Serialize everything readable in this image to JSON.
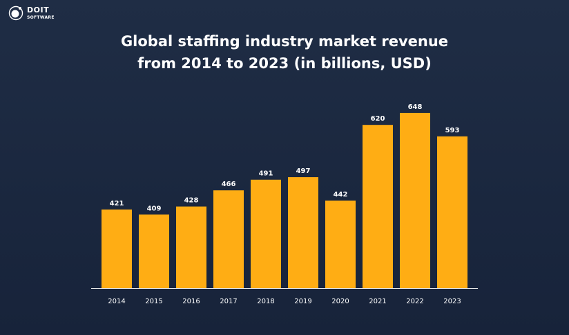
{
  "logo": {
    "text": "DOIT",
    "sub": "SOFTWARE"
  },
  "chart_data": {
    "type": "bar",
    "title": "Global staffing industry market revenue from 2014 to 2023 (in billions, USD)",
    "title_lines": [
      "Global staffing industry market revenue",
      "from 2014 to 2023 (in billions, USD)"
    ],
    "categories": [
      "2014",
      "2015",
      "2016",
      "2017",
      "2018",
      "2019",
      "2020",
      "2021",
      "2022",
      "2023"
    ],
    "values": [
      421,
      409,
      428,
      466,
      491,
      497,
      442,
      620,
      648,
      593
    ],
    "xlabel": "",
    "ylabel": "",
    "grid": false,
    "bar_color": "#ffad14",
    "background": "#1c2940"
  }
}
